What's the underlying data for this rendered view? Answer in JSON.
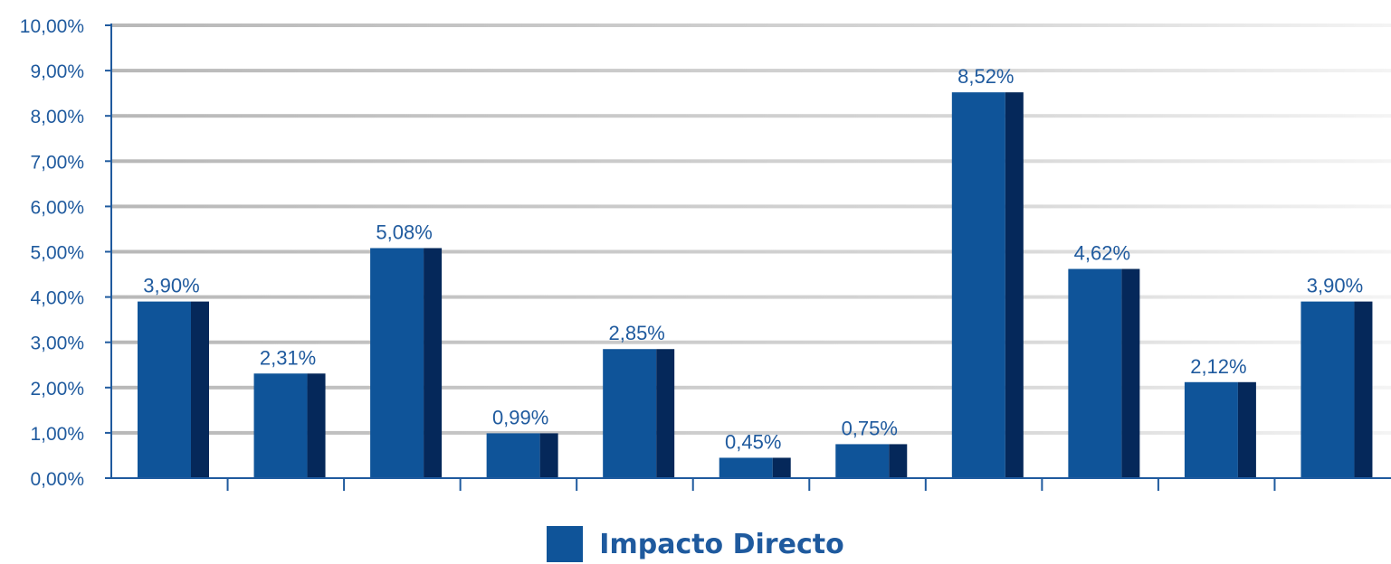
{
  "chart_data": {
    "type": "bar",
    "categories": [
      "",
      "",
      "",
      "",
      "",
      "",
      "",
      "",
      "",
      "",
      ""
    ],
    "series": [
      {
        "name": "Impacto Directo",
        "values": [
          3.9,
          2.31,
          5.08,
          0.99,
          2.85,
          0.45,
          0.75,
          8.52,
          4.62,
          2.12,
          3.9
        ],
        "labels": [
          "3,90%",
          "2,31%",
          "5,08%",
          "0,99%",
          "2,85%",
          "0,45%",
          "0,75%",
          "8,52%",
          "4,62%",
          "2,12%",
          "3,90%"
        ]
      }
    ],
    "ylim": [
      0,
      10
    ],
    "yticks": [
      "0,00%",
      "1,00%",
      "2,00%",
      "3,00%",
      "4,00%",
      "5,00%",
      "6,00%",
      "7,00%",
      "8,00%",
      "9,00%",
      "10,00%"
    ],
    "grid": true,
    "legend_position": "bottom-center",
    "colors": {
      "bar_front": "#0f5499",
      "bar_side": "#05285a",
      "axis": "#1f5a9e",
      "grid": "#cfcfcf",
      "text": "#1f5a9e"
    }
  },
  "legend": {
    "label": "Impacto Directo"
  }
}
